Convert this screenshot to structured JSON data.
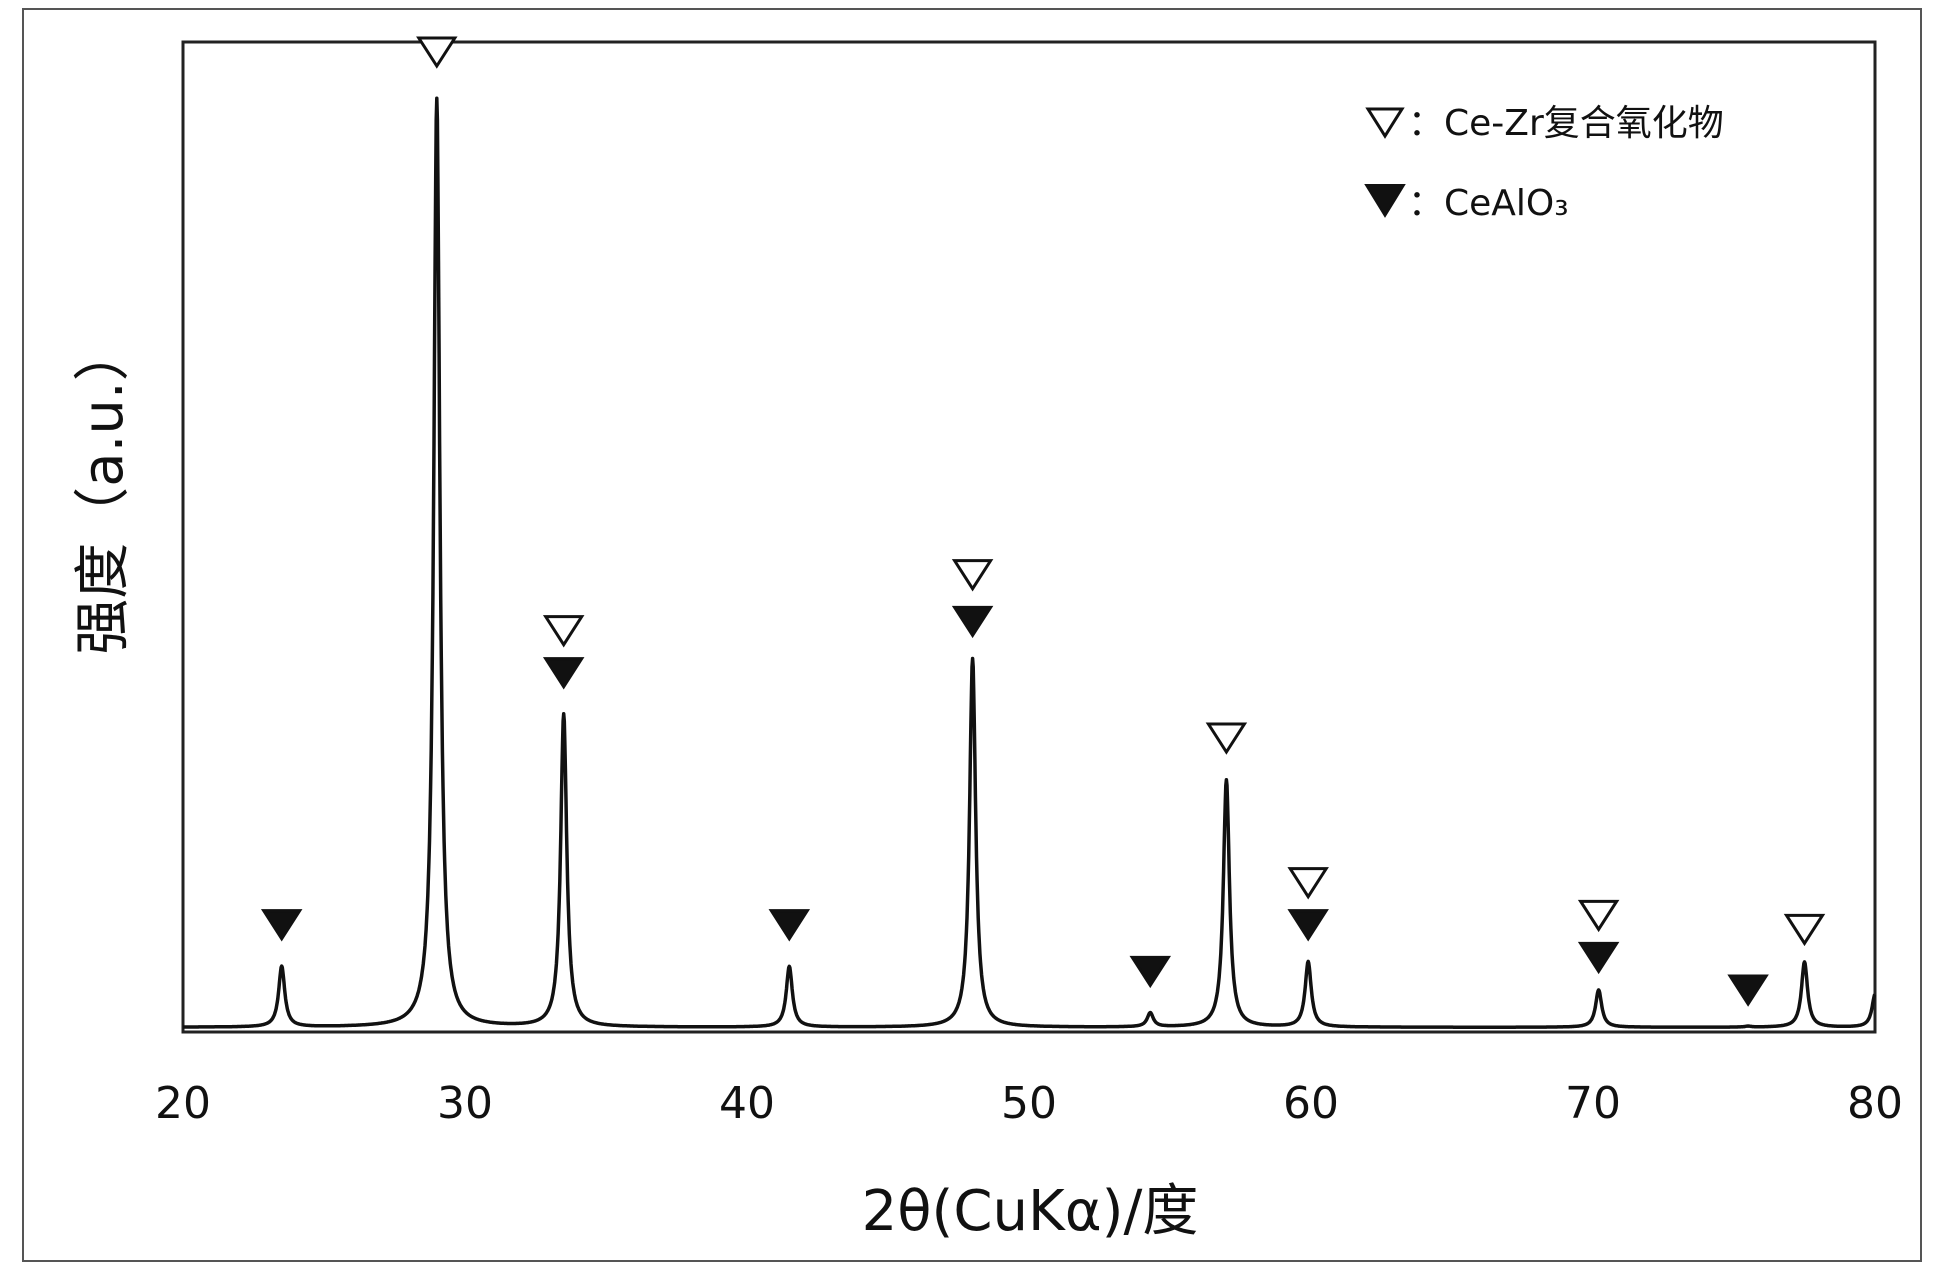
{
  "chart_data": {
    "type": "line",
    "xlabel": "2θ(CuKα)/度",
    "ylabel": "强度（a.u.）",
    "xlim": [
      20,
      80
    ],
    "ylim": [
      0,
      105
    ],
    "grid": false,
    "legend_position": "top-right",
    "x_ticks": [
      "20",
      "30",
      "40",
      "50",
      "60",
      "70",
      "80"
    ],
    "legend": [
      {
        "marker": "open-triangle-down",
        "label": "：Ce-Zr复合氧化物"
      },
      {
        "marker": "filled-triangle-down",
        "label": "：CeAlO₃"
      }
    ],
    "baseline": 0.5,
    "series": [
      {
        "peaks": [
          {
            "x": 23.5,
            "y": 7
          },
          {
            "x": 29.0,
            "y": 100
          },
          {
            "x": 33.5,
            "y": 34
          },
          {
            "x": 41.5,
            "y": 7
          },
          {
            "x": 48.0,
            "y": 40
          },
          {
            "x": 54.3,
            "y": 2
          },
          {
            "x": 57.0,
            "y": 27
          },
          {
            "x": 59.9,
            "y": 7.5
          },
          {
            "x": 70.2,
            "y": 4.5
          },
          {
            "x": 75.5,
            "y": 0.6
          },
          {
            "x": 77.5,
            "y": 7.5
          },
          {
            "x": 80.0,
            "y": 4
          }
        ]
      }
    ],
    "markers": [
      {
        "x": 23.5,
        "y": 11.5,
        "type": "filled"
      },
      {
        "x": 29.0,
        "y": 105,
        "type": "open"
      },
      {
        "x": 33.5,
        "y": 43,
        "type": "open"
      },
      {
        "x": 33.5,
        "y": 38.5,
        "type": "filled"
      },
      {
        "x": 41.5,
        "y": 11.5,
        "type": "filled"
      },
      {
        "x": 48.0,
        "y": 49,
        "type": "open"
      },
      {
        "x": 48.0,
        "y": 44,
        "type": "filled"
      },
      {
        "x": 54.3,
        "y": 6.5,
        "type": "filled"
      },
      {
        "x": 57.0,
        "y": 31.5,
        "type": "open"
      },
      {
        "x": 59.9,
        "y": 16,
        "type": "open"
      },
      {
        "x": 59.9,
        "y": 11.5,
        "type": "filled"
      },
      {
        "x": 70.2,
        "y": 12.5,
        "type": "open"
      },
      {
        "x": 70.2,
        "y": 8,
        "type": "filled"
      },
      {
        "x": 75.5,
        "y": 4.5,
        "type": "filled"
      },
      {
        "x": 77.5,
        "y": 11,
        "type": "open"
      }
    ]
  }
}
